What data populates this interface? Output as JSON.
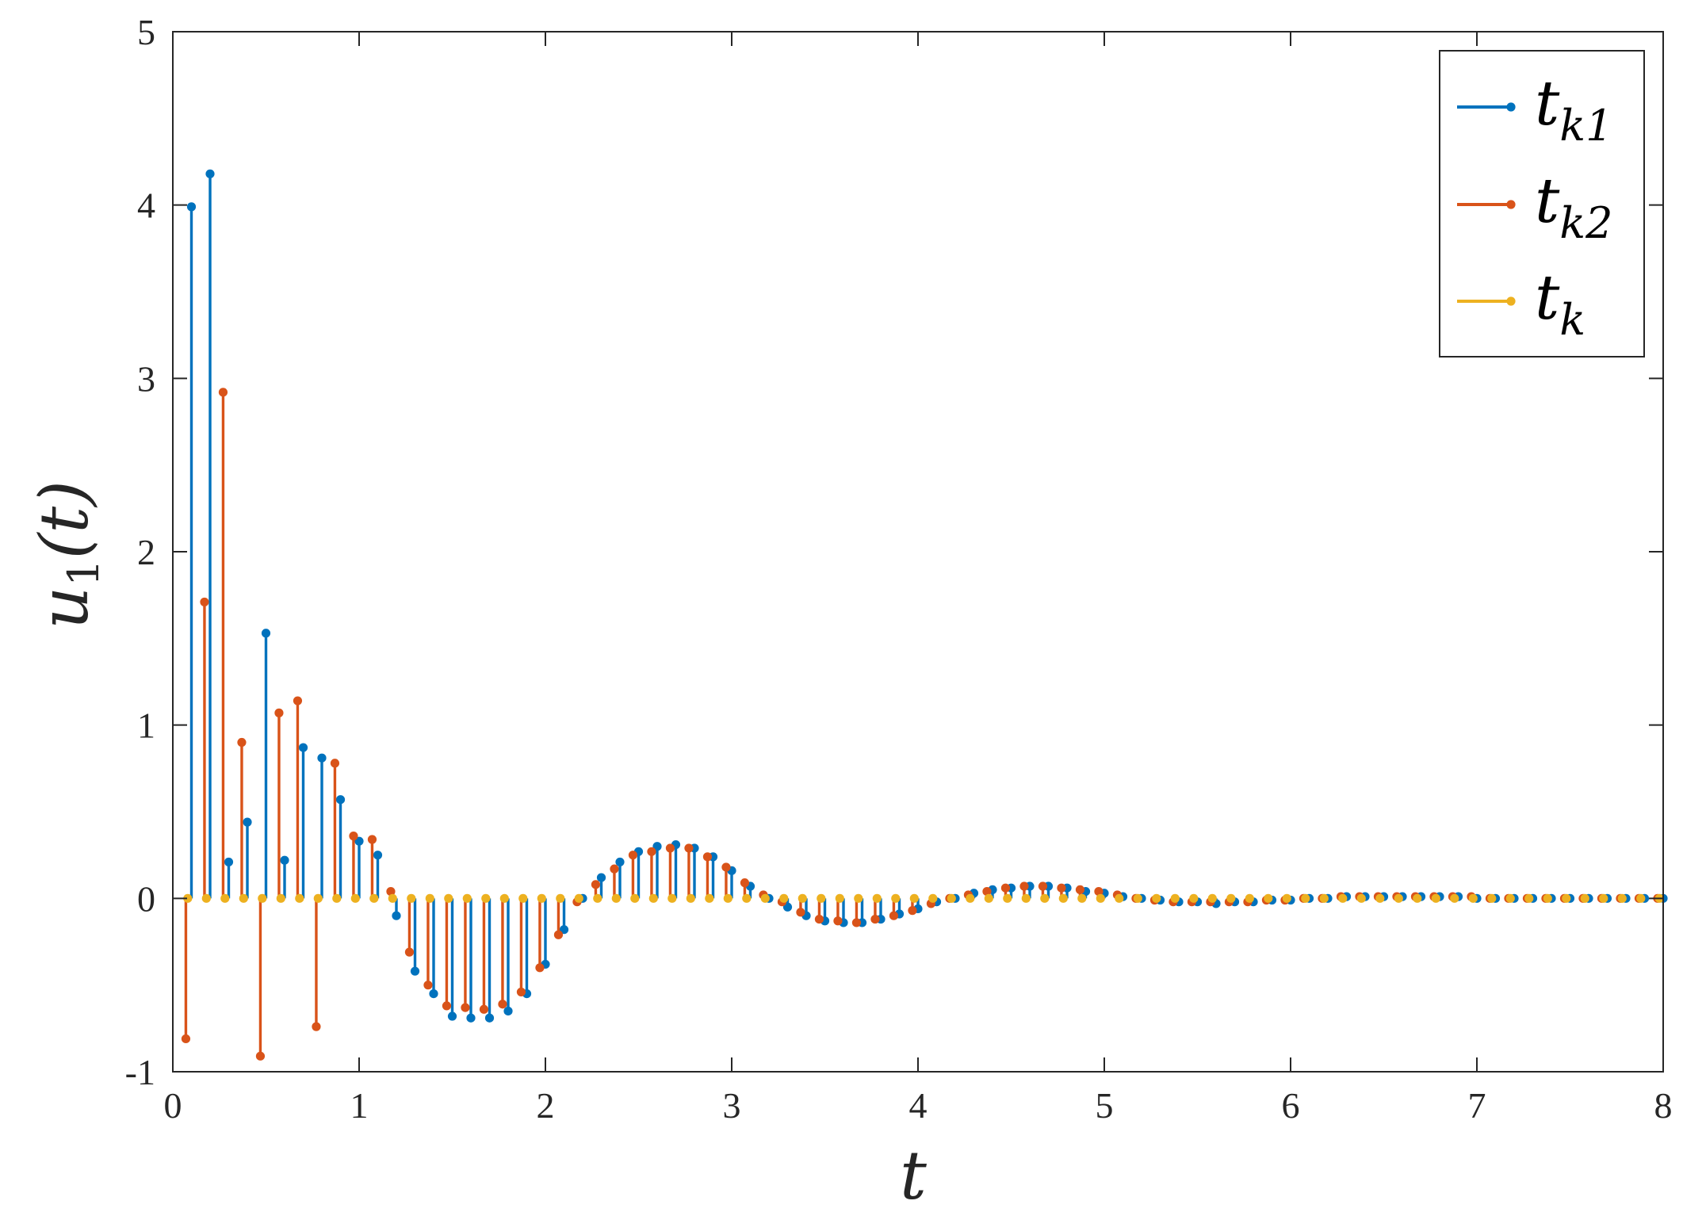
{
  "chart_data": {
    "type": "stem",
    "xlabel": "t",
    "ylabel": "u",
    "ylabel_subscript": "1",
    "ylabel_suffix": "(t)",
    "xlim": [
      0,
      8
    ],
    "ylim": [
      -1,
      5
    ],
    "xticks": [
      0,
      1,
      2,
      3,
      4,
      5,
      6,
      7,
      8
    ],
    "xtick_labels": [
      "0",
      "1",
      "2",
      "3",
      "4",
      "5",
      "6",
      "7",
      "8"
    ],
    "yticks": [
      -1,
      0,
      1,
      2,
      3,
      4,
      5
    ],
    "ytick_labels": [
      "-1",
      "0",
      "1",
      "2",
      "3",
      "4",
      "5"
    ],
    "grid": false,
    "legend_position": "top-right",
    "series": [
      {
        "name": "t",
        "name_subscript": "k1",
        "color": "#0072BD",
        "x": [
          0.1,
          0.2,
          0.3,
          0.4,
          0.5,
          0.6,
          0.7,
          0.8,
          0.9,
          1.0,
          1.1,
          1.2,
          1.3,
          1.4,
          1.5,
          1.6,
          1.7,
          1.8,
          1.9,
          2.0,
          2.1,
          2.2,
          2.3,
          2.4,
          2.5,
          2.6,
          2.7,
          2.8,
          2.9,
          3.0,
          3.1,
          3.2,
          3.3,
          3.4,
          3.5,
          3.6,
          3.7,
          3.8,
          3.9,
          4.0,
          4.1,
          4.2,
          4.3,
          4.4,
          4.5,
          4.6,
          4.7,
          4.8,
          4.9,
          5.0,
          5.1,
          5.2,
          5.3,
          5.4,
          5.5,
          5.6,
          5.7,
          5.8,
          5.9,
          6.0,
          6.1,
          6.2,
          6.3,
          6.4,
          6.5,
          6.6,
          6.7,
          6.8,
          6.9,
          7.0,
          7.1,
          7.2,
          7.3,
          7.4,
          7.5,
          7.6,
          7.7,
          7.8,
          7.9,
          8.0
        ],
        "values": [
          3.99,
          4.18,
          0.21,
          0.44,
          1.53,
          0.22,
          0.87,
          0.81,
          0.57,
          0.33,
          0.25,
          -0.1,
          -0.42,
          -0.55,
          -0.68,
          -0.69,
          -0.69,
          -0.65,
          -0.55,
          -0.38,
          -0.18,
          0.0,
          0.12,
          0.21,
          0.27,
          0.3,
          0.31,
          0.29,
          0.24,
          0.16,
          0.07,
          0.0,
          -0.05,
          -0.1,
          -0.13,
          -0.14,
          -0.14,
          -0.12,
          -0.09,
          -0.06,
          -0.02,
          0.0,
          0.03,
          0.05,
          0.06,
          0.07,
          0.07,
          0.06,
          0.04,
          0.03,
          0.01,
          0.0,
          -0.01,
          -0.02,
          -0.02,
          -0.03,
          -0.02,
          -0.02,
          -0.01,
          -0.01,
          0.0,
          0.0,
          0.01,
          0.01,
          0.01,
          0.01,
          0.01,
          0.01,
          0.01,
          0.0,
          0.0,
          0.0,
          0.0,
          0.0,
          0.0,
          0.0,
          0.0,
          0.0,
          0.0,
          0.0
        ]
      },
      {
        "name": "t",
        "name_subscript": "k2",
        "color": "#D95319",
        "x": [
          0.07,
          0.17,
          0.27,
          0.37,
          0.47,
          0.57,
          0.67,
          0.77,
          0.87,
          0.97,
          1.07,
          1.17,
          1.27,
          1.37,
          1.47,
          1.57,
          1.67,
          1.77,
          1.87,
          1.97,
          2.07,
          2.17,
          2.27,
          2.37,
          2.47,
          2.57,
          2.67,
          2.77,
          2.87,
          2.97,
          3.07,
          3.17,
          3.27,
          3.37,
          3.47,
          3.57,
          3.67,
          3.77,
          3.87,
          3.97,
          4.07,
          4.17,
          4.27,
          4.37,
          4.47,
          4.57,
          4.67,
          4.77,
          4.87,
          4.97,
          5.07,
          5.17,
          5.27,
          5.37,
          5.47,
          5.57,
          5.67,
          5.77,
          5.87,
          5.97,
          6.07,
          6.17,
          6.27,
          6.37,
          6.47,
          6.57,
          6.67,
          6.77,
          6.87,
          6.97,
          7.07,
          7.17,
          7.27,
          7.37,
          7.47,
          7.57,
          7.67,
          7.77,
          7.87,
          7.97
        ],
        "values": [
          -0.81,
          1.71,
          2.92,
          0.9,
          -0.91,
          1.07,
          1.14,
          -0.74,
          0.78,
          0.36,
          0.34,
          0.04,
          -0.31,
          -0.5,
          -0.62,
          -0.63,
          -0.64,
          -0.61,
          -0.54,
          -0.4,
          -0.21,
          -0.02,
          0.08,
          0.17,
          0.25,
          0.27,
          0.29,
          0.29,
          0.24,
          0.18,
          0.09,
          0.02,
          -0.02,
          -0.08,
          -0.12,
          -0.13,
          -0.14,
          -0.12,
          -0.1,
          -0.07,
          -0.03,
          0.0,
          0.02,
          0.04,
          0.06,
          0.07,
          0.07,
          0.06,
          0.05,
          0.04,
          0.02,
          0.0,
          -0.01,
          -0.02,
          -0.02,
          -0.02,
          -0.02,
          -0.02,
          -0.01,
          -0.01,
          0.0,
          0.0,
          0.01,
          0.01,
          0.01,
          0.01,
          0.01,
          0.01,
          0.01,
          0.01,
          0.0,
          0.0,
          0.0,
          0.0,
          0.0,
          0.0,
          0.0,
          0.0,
          0.0,
          0.0
        ]
      },
      {
        "name": "t",
        "name_subscript": "k",
        "color": "#EDB120",
        "x": [
          0.08,
          0.18,
          0.28,
          0.38,
          0.48,
          0.58,
          0.68,
          0.78,
          0.88,
          0.98,
          1.08,
          1.18,
          1.28,
          1.38,
          1.48,
          1.58,
          1.68,
          1.78,
          1.88,
          1.98,
          2.08,
          2.18,
          2.28,
          2.38,
          2.48,
          2.58,
          2.68,
          2.78,
          2.88,
          2.98,
          3.08,
          3.18,
          3.28,
          3.38,
          3.48,
          3.58,
          3.68,
          3.78,
          3.88,
          3.98,
          4.08,
          4.18,
          4.28,
          4.38,
          4.48,
          4.58,
          4.68,
          4.78,
          4.88,
          4.98,
          5.08,
          5.18,
          5.28,
          5.38,
          5.48,
          5.58,
          5.68,
          5.78,
          5.88,
          5.98,
          6.08,
          6.18,
          6.28,
          6.38,
          6.48,
          6.58,
          6.68,
          6.78,
          6.88,
          6.98,
          7.08,
          7.18,
          7.28,
          7.38,
          7.48,
          7.58,
          7.68,
          7.78,
          7.88,
          7.98
        ],
        "values": [
          0,
          0,
          0,
          0,
          0,
          0,
          0,
          0,
          0,
          0,
          0,
          0,
          0,
          0,
          0,
          0,
          0,
          0,
          0,
          0,
          0,
          0,
          0,
          0,
          0,
          0,
          0,
          0,
          0,
          0,
          0,
          0,
          0,
          0,
          0,
          0,
          0,
          0,
          0,
          0,
          0,
          0,
          0,
          0,
          0,
          0,
          0,
          0,
          0,
          0,
          0,
          0,
          0,
          0,
          0,
          0,
          0,
          0,
          0,
          0,
          0,
          0,
          0,
          0,
          0,
          0,
          0,
          0,
          0,
          0,
          0,
          0,
          0,
          0,
          0,
          0,
          0,
          0,
          0,
          0
        ]
      }
    ]
  }
}
